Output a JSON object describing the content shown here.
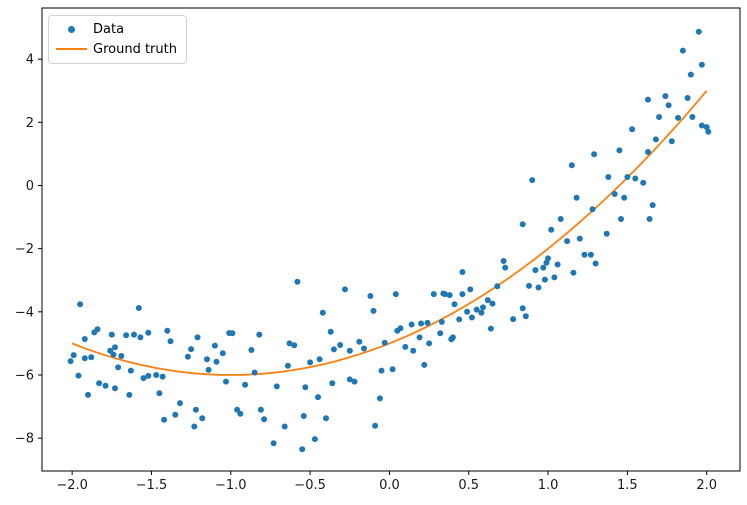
{
  "figure": {
    "background": "#ffffff"
  },
  "legend": {
    "position": "upper left",
    "items": [
      {
        "label": "Data",
        "marker": "dot",
        "color": "#1f77b4"
      },
      {
        "label": "Ground truth",
        "marker": "line",
        "color": "#ff7f0e"
      }
    ]
  },
  "chart_data": {
    "type": "scatter",
    "title": "",
    "xlabel": "",
    "ylabel": "",
    "grid": false,
    "legend_position": "upper left",
    "xlim": [
      -2.19,
      2.21
    ],
    "ylim": [
      -9.04,
      5.62
    ],
    "x_ticks": {
      "values": [
        -2.0,
        -1.5,
        -1.0,
        -0.5,
        0.0,
        0.5,
        1.0,
        1.5,
        2.0
      ],
      "labels": [
        "−2.0",
        "−1.5",
        "−1.0",
        "−0.5",
        "0.0",
        "0.5",
        "1.0",
        "1.5",
        "2.0"
      ]
    },
    "y_ticks": {
      "values": [
        -8,
        -6,
        -4,
        -2,
        0,
        2,
        4
      ],
      "labels": [
        "−8",
        "−6",
        "−4",
        "−2",
        "0",
        "2",
        "4"
      ]
    },
    "series": [
      {
        "name": "Data",
        "type": "scatter",
        "color": "#1f77b4",
        "marker_size": 6,
        "points": [
          [
            -1.95,
            -3.76
          ],
          [
            -1.58,
            -3.88
          ],
          [
            -1.92,
            -4.86
          ],
          [
            -1.86,
            -4.65
          ],
          [
            -1.84,
            -4.55
          ],
          [
            -1.75,
            -4.72
          ],
          [
            -1.66,
            -4.74
          ],
          [
            -1.61,
            -4.72
          ],
          [
            -1.57,
            -4.81
          ],
          [
            -1.52,
            -4.66
          ],
          [
            -1.4,
            -4.6
          ],
          [
            -1.38,
            -4.93
          ],
          [
            -1.99,
            -5.37
          ],
          [
            -2.01,
            -5.56
          ],
          [
            -1.92,
            -5.47
          ],
          [
            -1.88,
            -5.44
          ],
          [
            -1.76,
            -5.23
          ],
          [
            -1.73,
            -5.12
          ],
          [
            -1.74,
            -5.35
          ],
          [
            -1.69,
            -5.4
          ],
          [
            -1.96,
            -6.02
          ],
          [
            -1.71,
            -5.76
          ],
          [
            -1.63,
            -5.86
          ],
          [
            -1.55,
            -6.1
          ],
          [
            -1.52,
            -6.03
          ],
          [
            -1.47,
            -6.0
          ],
          [
            -1.43,
            -6.05
          ],
          [
            -1.9,
            -6.63
          ],
          [
            -1.83,
            -6.26
          ],
          [
            -1.79,
            -6.34
          ],
          [
            -1.73,
            -6.42
          ],
          [
            -1.64,
            -6.63
          ],
          [
            -1.45,
            -6.58
          ],
          [
            -1.42,
            -7.42
          ],
          [
            -1.35,
            -7.26
          ],
          [
            -1.32,
            -6.89
          ],
          [
            -1.27,
            -5.42
          ],
          [
            -1.25,
            -5.18
          ],
          [
            -1.21,
            -4.81
          ],
          [
            -1.22,
            -7.1
          ],
          [
            -1.18,
            -7.37
          ],
          [
            -1.23,
            -7.63
          ],
          [
            -1.15,
            -5.5
          ],
          [
            -1.14,
            -5.84
          ],
          [
            -1.1,
            -5.07
          ],
          [
            -1.09,
            -5.58
          ],
          [
            -1.05,
            -5.31
          ],
          [
            -1.03,
            -6.21
          ],
          [
            -1.01,
            -4.67
          ],
          [
            -0.99,
            -4.68
          ],
          [
            -0.96,
            -7.1
          ],
          [
            -0.94,
            -7.23
          ],
          [
            -0.91,
            -6.31
          ],
          [
            -0.87,
            -5.21
          ],
          [
            -0.82,
            -4.72
          ],
          [
            -0.85,
            -5.92
          ],
          [
            -0.81,
            -7.1
          ],
          [
            -0.79,
            -7.4
          ],
          [
            -0.71,
            -6.36
          ],
          [
            -0.73,
            -8.16
          ],
          [
            -0.58,
            -3.05
          ],
          [
            -0.28,
            -3.29
          ],
          [
            0.04,
            -3.44
          ],
          [
            -0.12,
            -3.5
          ],
          [
            -0.42,
            -4.03
          ],
          [
            -0.1,
            -3.97
          ],
          [
            -0.37,
            -4.63
          ],
          [
            -0.63,
            -5.0
          ],
          [
            -0.6,
            -5.06
          ],
          [
            -0.64,
            -5.71
          ],
          [
            -0.5,
            -5.6
          ],
          [
            -0.44,
            -5.5
          ],
          [
            -0.35,
            -5.19
          ],
          [
            -0.31,
            -5.05
          ],
          [
            -0.25,
            -5.23
          ],
          [
            -0.19,
            -4.95
          ],
          [
            -0.16,
            -5.16
          ],
          [
            -0.03,
            -4.98
          ],
          [
            0.1,
            -5.11
          ],
          [
            0.15,
            -5.23
          ],
          [
            0.05,
            -4.6
          ],
          [
            0.07,
            -4.52
          ],
          [
            0.14,
            -4.4
          ],
          [
            0.2,
            -4.37
          ],
          [
            0.24,
            -4.35
          ],
          [
            0.33,
            -4.32
          ],
          [
            0.4,
            -4.81
          ],
          [
            0.32,
            -4.68
          ],
          [
            0.19,
            -4.81
          ],
          [
            0.25,
            -5.0
          ],
          [
            0.44,
            -4.24
          ],
          [
            0.46,
            -3.44
          ],
          [
            0.35,
            -3.44
          ],
          [
            0.28,
            -3.44
          ],
          [
            0.34,
            -3.42
          ],
          [
            0.38,
            -3.47
          ],
          [
            0.41,
            -3.76
          ],
          [
            0.49,
            -4.0
          ],
          [
            0.52,
            -4.18
          ],
          [
            0.55,
            -3.93
          ],
          [
            0.58,
            -4.03
          ],
          [
            0.59,
            -3.86
          ],
          [
            0.62,
            -3.63
          ],
          [
            0.65,
            -3.74
          ],
          [
            0.51,
            -3.29
          ],
          [
            0.68,
            -3.19
          ],
          [
            0.64,
            -4.53
          ],
          [
            0.39,
            -4.87
          ],
          [
            0.22,
            -5.68
          ],
          [
            0.02,
            -5.82
          ],
          [
            -0.05,
            -5.86
          ],
          [
            -0.25,
            -6.14
          ],
          [
            -0.22,
            -6.21
          ],
          [
            -0.36,
            -6.26
          ],
          [
            -0.53,
            -6.39
          ],
          [
            -0.45,
            -6.7
          ],
          [
            -0.06,
            -6.74
          ],
          [
            -0.54,
            -7.3
          ],
          [
            -0.4,
            -7.37
          ],
          [
            -0.66,
            -7.63
          ],
          [
            -0.09,
            -7.61
          ],
          [
            -0.47,
            -8.03
          ],
          [
            -0.55,
            -8.35
          ],
          [
            0.72,
            -2.39
          ],
          [
            0.73,
            -2.6
          ],
          [
            0.46,
            -2.74
          ],
          [
            1.02,
            -1.4
          ],
          [
            1.12,
            -1.76
          ],
          [
            1.2,
            -1.68
          ],
          [
            1.37,
            -1.53
          ],
          [
            1.23,
            -2.19
          ],
          [
            1.27,
            -2.19
          ],
          [
            1.3,
            -2.47
          ],
          [
            1.06,
            -2.5
          ],
          [
            0.99,
            -2.44
          ],
          [
            0.97,
            -2.6
          ],
          [
            0.92,
            -2.68
          ],
          [
            1.16,
            -2.76
          ],
          [
            1.04,
            -2.91
          ],
          [
            0.88,
            -3.18
          ],
          [
            0.94,
            -3.23
          ],
          [
            0.84,
            -3.89
          ],
          [
            0.86,
            -4.14
          ],
          [
            0.78,
            -4.23
          ],
          [
            1.0,
            -2.31
          ],
          [
            0.98,
            -2.98
          ],
          [
            1.95,
            4.87
          ],
          [
            1.85,
            4.27
          ],
          [
            1.97,
            3.82
          ],
          [
            1.9,
            3.51
          ],
          [
            1.88,
            2.77
          ],
          [
            1.74,
            2.83
          ],
          [
            1.76,
            2.54
          ],
          [
            1.63,
            2.72
          ],
          [
            1.91,
            2.17
          ],
          [
            1.97,
            1.9
          ],
          [
            2.0,
            1.85
          ],
          [
            2.01,
            1.7
          ],
          [
            1.82,
            2.14
          ],
          [
            1.7,
            2.17
          ],
          [
            1.53,
            1.78
          ],
          [
            1.68,
            1.46
          ],
          [
            1.78,
            1.4
          ],
          [
            1.63,
            1.06
          ],
          [
            1.29,
            0.99
          ],
          [
            1.45,
            1.11
          ],
          [
            1.15,
            0.64
          ],
          [
            0.9,
            0.17
          ],
          [
            1.38,
            0.27
          ],
          [
            1.5,
            0.27
          ],
          [
            1.55,
            0.22
          ],
          [
            1.6,
            0.09
          ],
          [
            1.42,
            -0.27
          ],
          [
            1.48,
            -0.39
          ],
          [
            1.66,
            -0.62
          ],
          [
            1.64,
            -1.06
          ],
          [
            1.46,
            -1.06
          ],
          [
            1.28,
            -0.75
          ],
          [
            1.18,
            -0.39
          ],
          [
            1.08,
            -1.06
          ],
          [
            0.84,
            -1.23
          ]
        ]
      },
      {
        "name": "Ground truth",
        "type": "line",
        "color": "#ff7f0e",
        "line_width": 1.8,
        "function": "y = x^2 + 2x − 5",
        "poly_coeffs": [
          1,
          2,
          -5
        ],
        "x_range": [
          -2.0,
          2.0
        ]
      }
    ]
  }
}
